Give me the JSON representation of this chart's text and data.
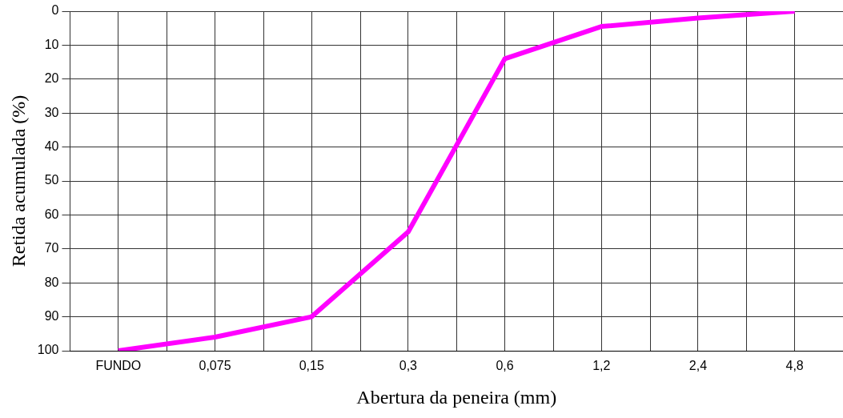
{
  "chart_data": {
    "type": "line",
    "xlabel": "Abertura da peneira (mm)",
    "ylabel": "Retida acumulada (%)",
    "categories": [
      "FUNDO",
      "0,075",
      "0,15",
      "0,3",
      "0,6",
      "1,2",
      "2,4",
      "4,8"
    ],
    "series": [
      {
        "color": "#ff00ff",
        "values": [
          100,
          96,
          90,
          65,
          14,
          4.5,
          2,
          0
        ]
      }
    ],
    "ylim": [
      100,
      0
    ],
    "yticks": [
      0,
      10,
      20,
      30,
      40,
      50,
      60,
      70,
      80,
      90,
      100
    ],
    "grid": true,
    "legend": false,
    "marker": "none",
    "line_style": "solid"
  }
}
